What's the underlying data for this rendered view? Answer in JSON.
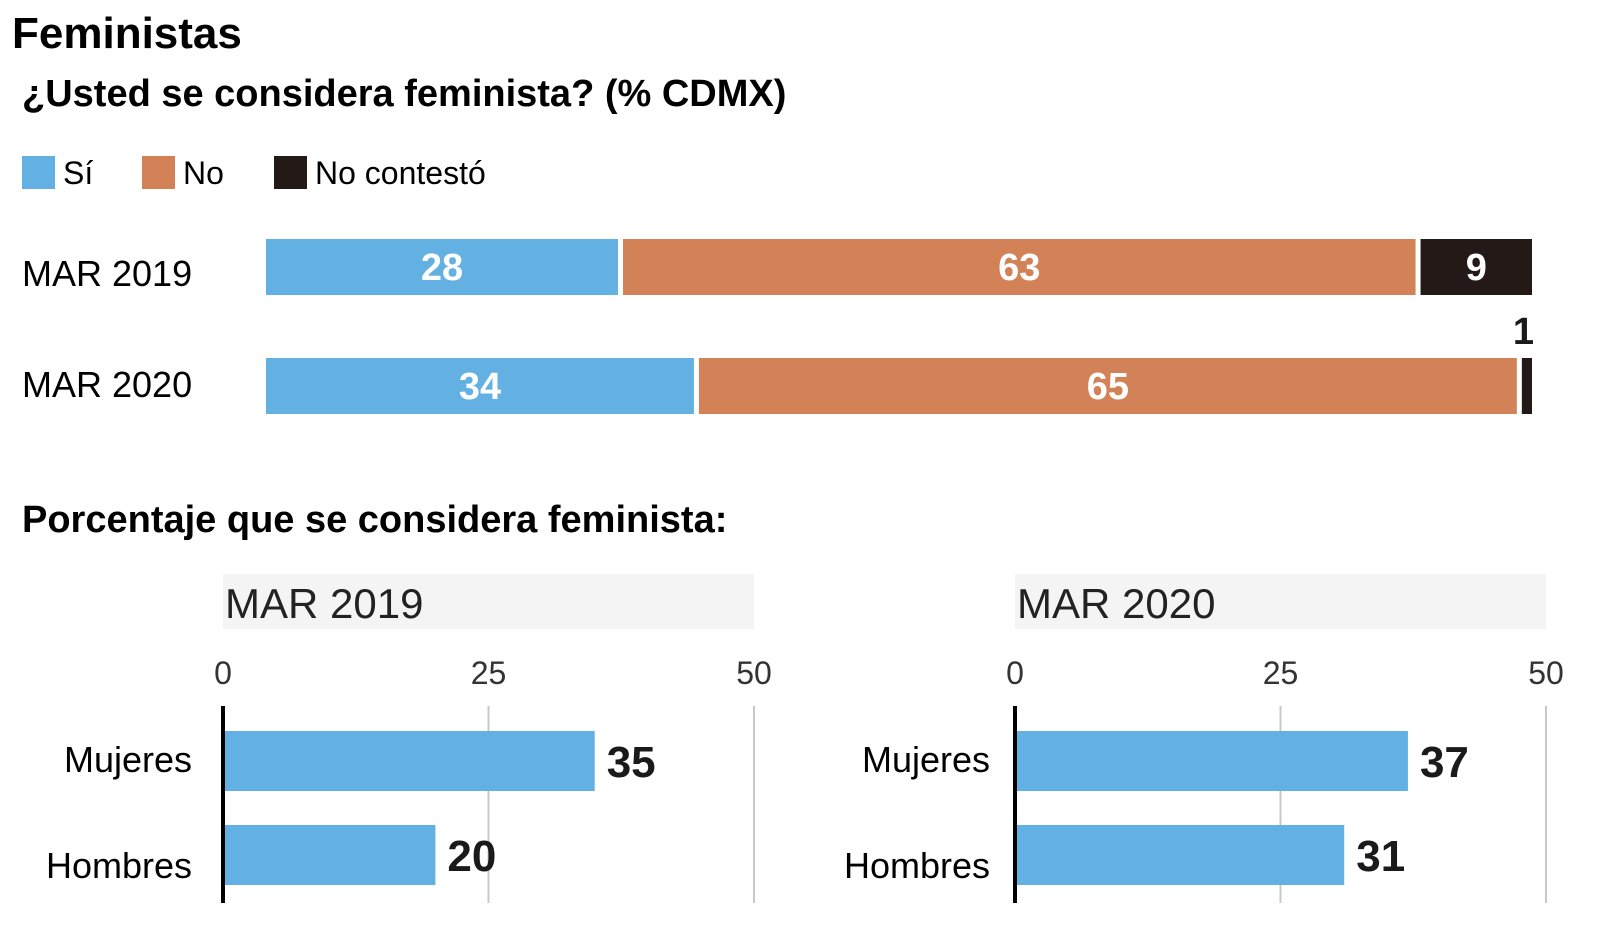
{
  "title": "Feministas",
  "subtitle": "¿Usted se considera feminista?  (% CDMX)",
  "section_title": "Porcentaje que se considera feminista:",
  "colors": {
    "si": "#63b0e3",
    "no": "#d38157",
    "nc": "#231a18",
    "panel_bg": "#f4f4f4",
    "grid": "#c8c8c8"
  },
  "chart_data": [
    {
      "type": "bar",
      "orientation": "horizontal",
      "stacked": true,
      "categories": [
        "MAR 2019",
        "MAR 2020"
      ],
      "series": [
        {
          "name": "Sí",
          "values": [
            28,
            34
          ]
        },
        {
          "name": "No",
          "values": [
            63,
            65
          ]
        },
        {
          "name": "No contestó",
          "values": [
            9,
            1
          ]
        }
      ],
      "xlim": [
        0,
        100
      ],
      "legend_position": "top-left"
    },
    {
      "type": "bar",
      "orientation": "horizontal",
      "title": "MAR 2019",
      "categories": [
        "Mujeres",
        "Hombres"
      ],
      "values": [
        35,
        20
      ],
      "xlim": [
        0,
        50
      ],
      "xticks": [
        0,
        25,
        50
      ],
      "grid": true
    },
    {
      "type": "bar",
      "orientation": "horizontal",
      "title": "MAR 2020",
      "categories": [
        "Mujeres",
        "Hombres"
      ],
      "values": [
        37,
        31
      ],
      "xlim": [
        0,
        50
      ],
      "xticks": [
        0,
        25,
        50
      ],
      "grid": true
    }
  ]
}
